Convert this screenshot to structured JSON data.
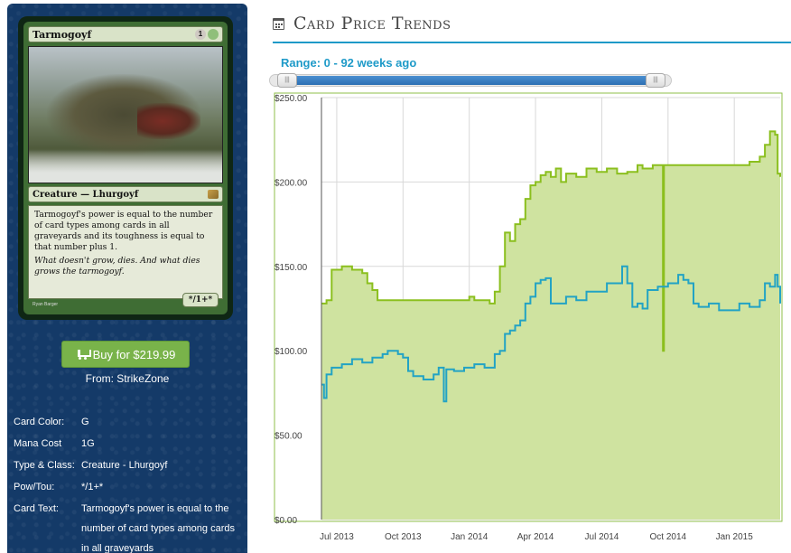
{
  "card": {
    "name": "Tarmogoyf",
    "mana_generic": "1",
    "mana_color": "G",
    "type_line": "Creature — Lhurgoyf",
    "rules_text": "Tarmogoyf's power is equal to the number of card types among cards in all graveyards and its toughness is equal to that number plus 1.",
    "flavor_text": "What doesn't grow, dies. And what dies grows the tarmogoyf.",
    "pt": "*/1+*",
    "artist": "Ryan Barger"
  },
  "buy": {
    "label": "Buy for $219.99",
    "from": "From: StrikeZone"
  },
  "info": [
    {
      "label": "Card Color:",
      "value": "G"
    },
    {
      "label": "Mana Cost",
      "value": "1G"
    },
    {
      "label": "Type & Class:",
      "value": "Creature - Lhurgoyf"
    },
    {
      "label": "Pow/Tou:",
      "value": "*/1+*"
    },
    {
      "label": "Card Text:",
      "value": "Tarmogoyf's power is equal to the number of card types among cards in all graveyards"
    }
  ],
  "header": {
    "title": "Card Price Trends"
  },
  "range": {
    "label": "Range: 0 - 92 weeks ago",
    "min": 0,
    "max": 92,
    "grip": "|||"
  },
  "colors": {
    "high": "#8bbf1e",
    "high_fill": "#cfe3a0",
    "low": "#22a3c4",
    "accent": "#1e9ac8"
  },
  "chart_data": {
    "type": "area",
    "title": "",
    "xlabel": "",
    "ylabel": "",
    "ylim": [
      0,
      250
    ],
    "y_ticks": [
      "$0.00",
      "$50.00",
      "$100.00",
      "$150.00",
      "$200.00",
      "$250.00"
    ],
    "x_ticks": [
      "Jul 2013",
      "Oct 2013",
      "Jan 2014",
      "Apr 2014",
      "Jul 2014",
      "Oct 2014",
      "Jan 2015"
    ],
    "x_tick_weeks": [
      3,
      16,
      29,
      42,
      55,
      68,
      81
    ],
    "grid": true,
    "series": [
      {
        "type": "area",
        "points": [
          [
            0,
            128
          ],
          [
            1,
            130
          ],
          [
            2,
            148
          ],
          [
            4,
            150
          ],
          [
            6,
            148
          ],
          [
            8,
            146
          ],
          [
            9,
            140
          ],
          [
            10,
            136
          ],
          [
            11,
            130
          ],
          [
            14,
            130
          ],
          [
            20,
            130
          ],
          [
            24,
            130
          ],
          [
            27,
            130
          ],
          [
            29,
            132
          ],
          [
            30,
            130
          ],
          [
            32,
            130
          ],
          [
            33,
            128
          ],
          [
            34,
            135
          ],
          [
            35,
            150
          ],
          [
            36,
            170
          ],
          [
            37,
            165
          ],
          [
            38,
            175
          ],
          [
            39,
            178
          ],
          [
            40,
            190
          ],
          [
            41,
            198
          ],
          [
            42,
            200
          ],
          [
            43,
            204
          ],
          [
            44,
            206
          ],
          [
            45,
            203
          ],
          [
            46,
            208
          ],
          [
            47,
            200
          ],
          [
            48,
            205
          ],
          [
            50,
            203
          ],
          [
            52,
            208
          ],
          [
            54,
            206
          ],
          [
            56,
            208
          ],
          [
            58,
            205
          ],
          [
            60,
            206
          ],
          [
            62,
            210
          ],
          [
            63,
            208
          ],
          [
            64,
            208
          ],
          [
            65,
            210
          ],
          [
            66,
            210
          ],
          [
            67,
            100
          ],
          [
            67.2,
            210
          ],
          [
            70,
            210
          ],
          [
            74,
            210
          ],
          [
            78,
            210
          ],
          [
            82,
            210
          ],
          [
            84,
            212
          ],
          [
            86,
            215
          ],
          [
            87,
            222
          ],
          [
            88,
            230
          ],
          [
            89,
            228
          ],
          [
            89.5,
            205
          ],
          [
            90,
            203
          ]
        ]
      },
      {
        "type": "line",
        "points": [
          [
            0,
            80
          ],
          [
            0.5,
            72
          ],
          [
            1,
            86
          ],
          [
            2,
            90
          ],
          [
            4,
            92
          ],
          [
            6,
            95
          ],
          [
            8,
            93
          ],
          [
            10,
            96
          ],
          [
            12,
            98
          ],
          [
            13,
            100
          ],
          [
            14,
            100
          ],
          [
            15,
            98
          ],
          [
            16,
            96
          ],
          [
            17,
            88
          ],
          [
            18,
            85
          ],
          [
            20,
            83
          ],
          [
            22,
            86
          ],
          [
            23,
            90
          ],
          [
            24,
            70
          ],
          [
            24.5,
            89
          ],
          [
            26,
            88
          ],
          [
            28,
            90
          ],
          [
            30,
            92
          ],
          [
            32,
            90
          ],
          [
            34,
            98
          ],
          [
            35,
            100
          ],
          [
            36,
            110
          ],
          [
            37,
            112
          ],
          [
            38,
            115
          ],
          [
            39,
            118
          ],
          [
            40,
            128
          ],
          [
            41,
            132
          ],
          [
            42,
            140
          ],
          [
            43,
            142
          ],
          [
            44,
            143
          ],
          [
            45,
            128
          ],
          [
            46,
            128
          ],
          [
            48,
            132
          ],
          [
            50,
            130
          ],
          [
            52,
            135
          ],
          [
            54,
            135
          ],
          [
            56,
            140
          ],
          [
            58,
            140
          ],
          [
            59,
            150
          ],
          [
            60,
            140
          ],
          [
            61,
            126
          ],
          [
            62,
            128
          ],
          [
            63,
            125
          ],
          [
            64,
            136
          ],
          [
            66,
            138
          ],
          [
            68,
            140
          ],
          [
            70,
            145
          ],
          [
            71,
            142
          ],
          [
            72,
            140
          ],
          [
            73,
            128
          ],
          [
            74,
            126
          ],
          [
            76,
            128
          ],
          [
            78,
            124
          ],
          [
            80,
            124
          ],
          [
            82,
            128
          ],
          [
            84,
            126
          ],
          [
            86,
            130
          ],
          [
            87,
            140
          ],
          [
            88,
            138
          ],
          [
            89,
            145
          ],
          [
            89.5,
            138
          ],
          [
            90,
            128
          ]
        ]
      }
    ]
  }
}
